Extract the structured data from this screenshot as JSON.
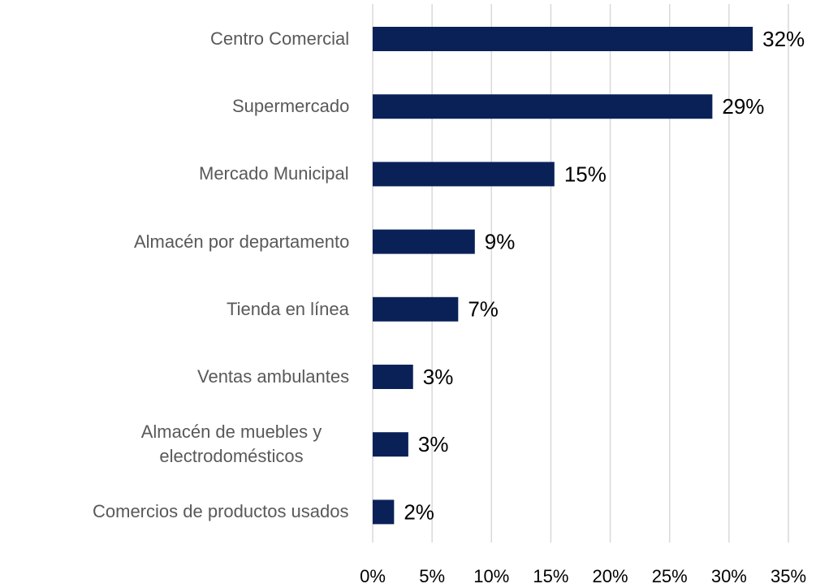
{
  "chart_data": {
    "type": "barh",
    "categories": [
      "Centro Comercial",
      "Supermercado",
      "Mercado Municipal",
      "Almacén por departamento",
      "Tienda en línea",
      "Ventas ambulantes",
      "Almacén de muebles y electrodomésticos",
      "Comercios de productos usados"
    ],
    "values": [
      32,
      28.6,
      15.3,
      8.6,
      7.2,
      3.4,
      3.0,
      1.8
    ],
    "value_labels": [
      "32%",
      "29%",
      "15%",
      "9%",
      "7%",
      "3%",
      "3%",
      "2%"
    ],
    "color": "#0a2158",
    "xlim": [
      0,
      35
    ],
    "xticks": [
      {
        "value": 0,
        "label": "0%"
      },
      {
        "value": 5,
        "label": "5%"
      },
      {
        "value": 10,
        "label": "10%"
      },
      {
        "value": 15,
        "label": "15%"
      },
      {
        "value": 20,
        "label": "20%"
      },
      {
        "value": 25,
        "label": "25%"
      },
      {
        "value": 30,
        "label": "30%"
      },
      {
        "value": 35,
        "label": "35%"
      }
    ],
    "grid": true
  }
}
